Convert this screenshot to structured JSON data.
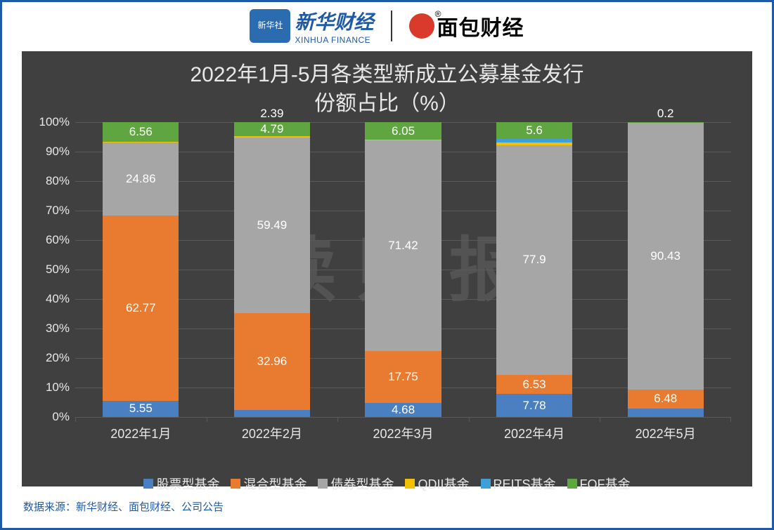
{
  "header": {
    "xinhua_icon_text": "新华社",
    "xinhua_cn": "新华财经",
    "xinhua_en": "XINHUA FINANCE",
    "mianbao": "面包财经"
  },
  "chart": {
    "type": "stacked-bar-percent",
    "title_line1": "2022年1月-5月各类型新成立公募基金发行",
    "title_line2": "份额占比（%）",
    "title_fontsize": 30,
    "title_color": "#e8e8e8",
    "background_color": "#404040",
    "grid_color": "#5a5a5a",
    "label_color_light": "#e8e8e8",
    "label_fontsize": 17,
    "watermark": "读财报",
    "ylim": [
      0,
      100
    ],
    "ytick_step": 10,
    "y_suffix": "%",
    "bar_width_ratio": 0.58,
    "categories": [
      "2022年1月",
      "2022年2月",
      "2022年3月",
      "2022年4月",
      "2022年5月"
    ],
    "series": [
      {
        "key": "equity",
        "name": "股票型基金",
        "color": "#4a7fc1"
      },
      {
        "key": "hybrid",
        "name": "混合型基金",
        "color": "#e87b2f"
      },
      {
        "key": "bond",
        "name": "债券型基金",
        "color": "#a6a6a6"
      },
      {
        "key": "qdii",
        "name": "QDII基金",
        "color": "#f2c200"
      },
      {
        "key": "reits",
        "name": "REITS基金",
        "color": "#3f9fd8"
      },
      {
        "key": "fof",
        "name": "FOF基金",
        "color": "#5fa641"
      }
    ],
    "data": [
      {
        "equity": 5.55,
        "hybrid": 62.77,
        "bond": 24.86,
        "qdii": 0.26,
        "reits": 0.0,
        "fof": 6.56
      },
      {
        "equity": 2.39,
        "hybrid": 32.96,
        "bond": 59.49,
        "qdii": 0.37,
        "reits": 0.0,
        "fof": 4.79
      },
      {
        "equity": 4.68,
        "hybrid": 17.75,
        "bond": 71.42,
        "qdii": 0.1,
        "reits": 0.0,
        "fof": 6.05
      },
      {
        "equity": 7.78,
        "hybrid": 6.53,
        "bond": 77.9,
        "qdii": 0.8,
        "reits": 1.39,
        "fof": 5.6
      },
      {
        "equity": 2.89,
        "hybrid": 6.48,
        "bond": 90.43,
        "qdii": 0.0,
        "reits": 0.0,
        "fof": 0.2
      }
    ],
    "visible_labels": [
      [
        "5.55",
        "62.77",
        "24.86",
        "6.56"
      ],
      [
        "2.39",
        "32.96",
        "59.49",
        "4.79"
      ],
      [
        "4.68",
        "17.75",
        "71.42",
        "6.05"
      ],
      [
        "7.78",
        "6.53",
        "77.9",
        "5.6"
      ],
      [
        "2.89",
        "6.48",
        "90.43",
        "0.2"
      ]
    ],
    "legend_prefix": "■"
  },
  "source": {
    "label": "数据来源：",
    "text": "新华财经、面包财经、公司公告"
  }
}
